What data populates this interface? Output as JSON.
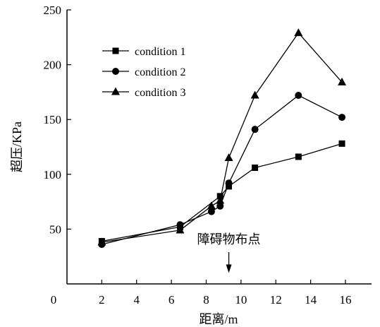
{
  "chart_data": {
    "type": "line",
    "xlabel": "距离/m",
    "ylabel": "超压/KPa",
    "x_origin_label": "0",
    "xlim": [
      0,
      17.5
    ],
    "ylim": [
      0,
      250
    ],
    "xticks": [
      2,
      4,
      6,
      8,
      10,
      12,
      14,
      16
    ],
    "yticks": [
      50,
      100,
      150,
      200,
      250
    ],
    "grid": false,
    "legend_position": "top-left",
    "series": [
      {
        "name": "condition 1",
        "marker": "square",
        "x": [
          2.0,
          6.5,
          8.8,
          9.3,
          10.8,
          13.3,
          15.8
        ],
        "y": [
          39,
          52,
          80,
          89,
          106,
          116,
          128
        ]
      },
      {
        "name": "condition 2",
        "marker": "circle",
        "x": [
          2.0,
          6.5,
          8.3,
          8.8,
          9.3,
          10.8,
          13.3,
          15.8
        ],
        "y": [
          36,
          54,
          66,
          71,
          92,
          141,
          172,
          152
        ]
      },
      {
        "name": "condition 3",
        "marker": "triangle",
        "x": [
          2.0,
          6.5,
          8.3,
          8.8,
          9.3,
          10.8,
          13.3,
          15.8
        ],
        "y": [
          38,
          49,
          71,
          76,
          115,
          172,
          229,
          184
        ]
      }
    ],
    "annotations": [
      {
        "text": "障碍物布点",
        "x": 9.3,
        "arrow_to_y": 10
      }
    ]
  }
}
